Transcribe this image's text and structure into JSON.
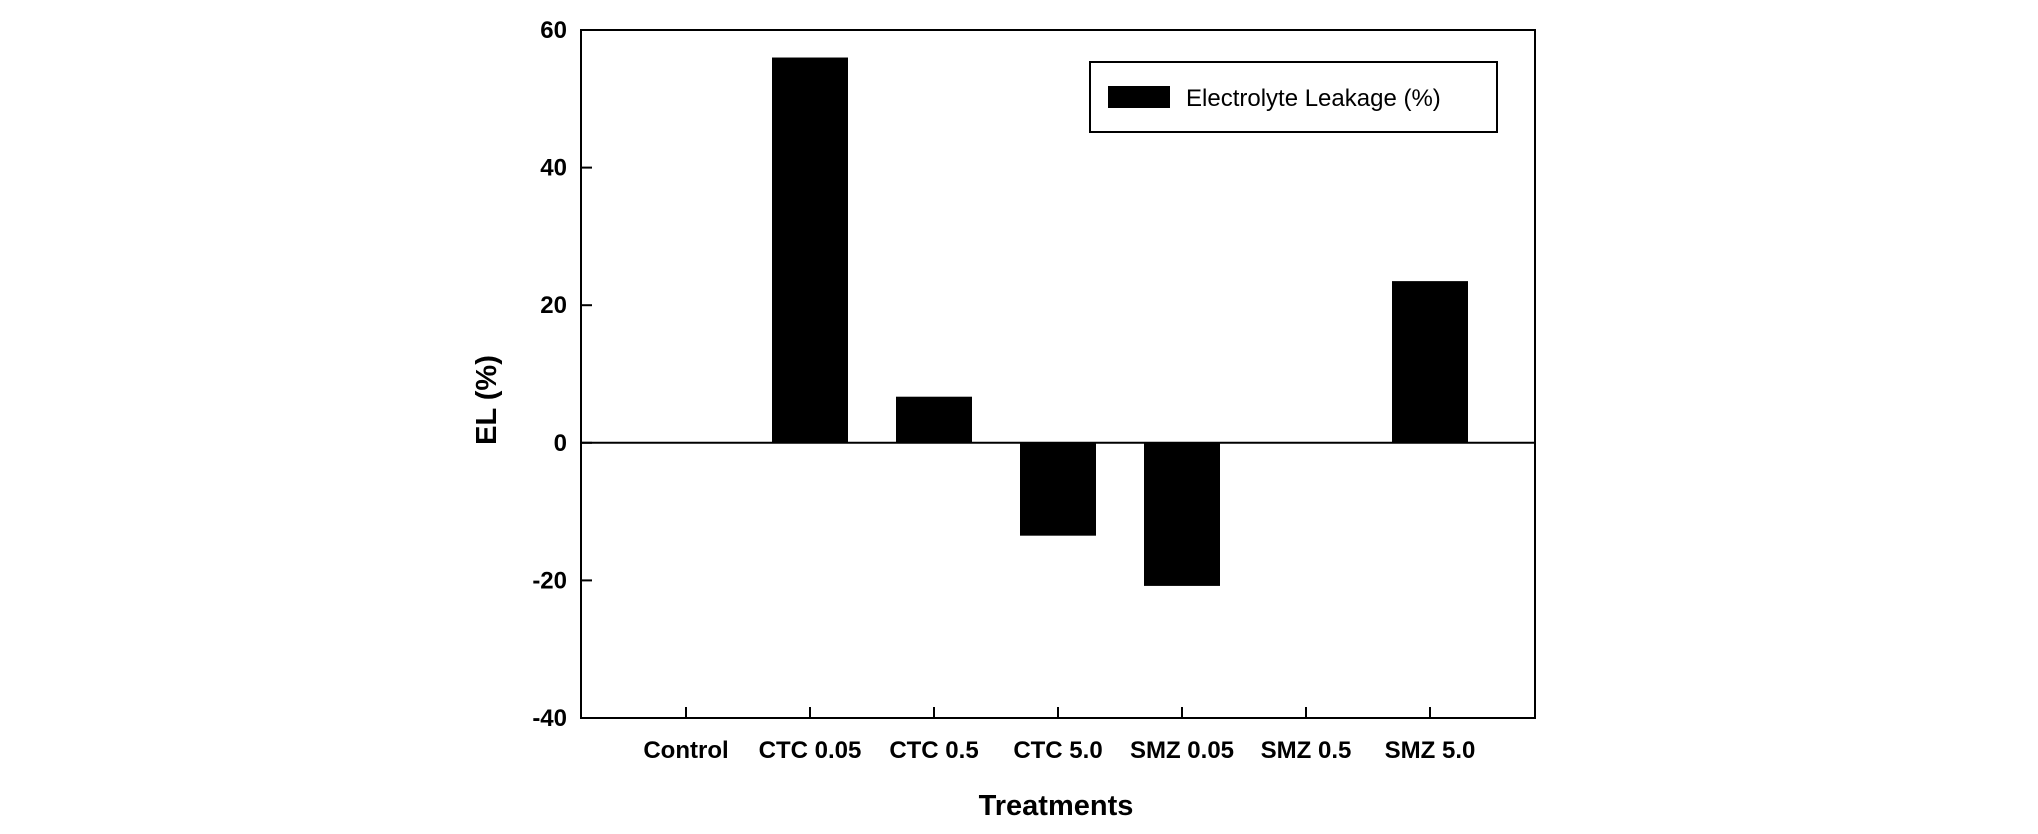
{
  "chart_data": {
    "type": "bar",
    "title": "",
    "xlabel": "Treatments",
    "ylabel": "EL (%)",
    "ylim": [
      -40,
      60
    ],
    "yticks": [
      -40,
      -20,
      0,
      20,
      40,
      60
    ],
    "grid": false,
    "legend_position": "top-right",
    "categories": [
      "Control",
      "CTC 0.05",
      "CTC 0.5",
      "CTC 5.0",
      "SMZ 0.05",
      "SMZ 0.5",
      "SMZ 5.0"
    ],
    "series": [
      {
        "name": "Electrolyte Leakage (%)",
        "color": "#000000",
        "values": [
          0,
          56,
          6.7,
          -13.5,
          -20.8,
          0,
          23.5
        ]
      }
    ]
  }
}
